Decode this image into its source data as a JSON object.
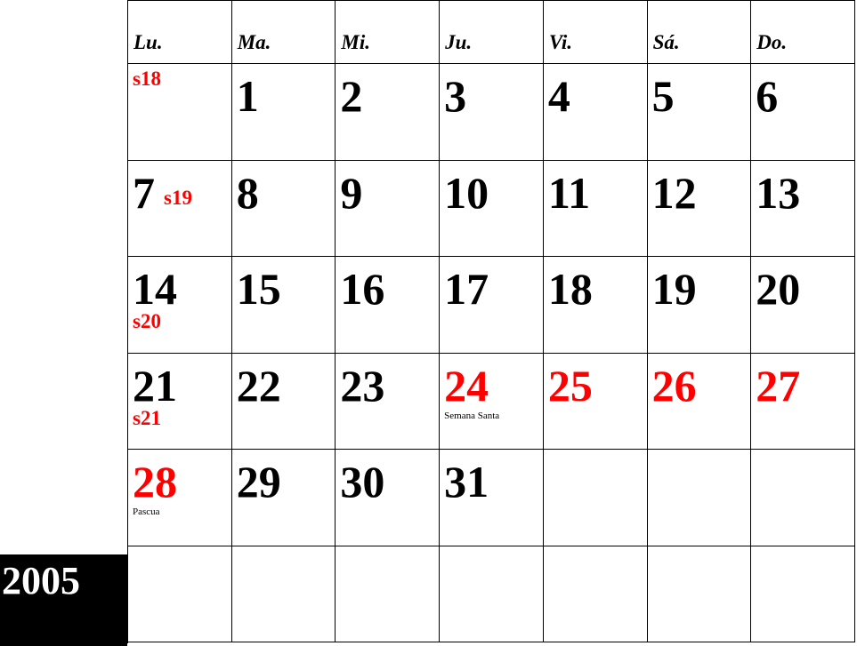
{
  "year": "2005",
  "headers": [
    "Lu.",
    "Ma.",
    "Mi.",
    "Ju.",
    "Vi.",
    "Sá.",
    "Do."
  ],
  "weeks": [
    [
      {
        "week": "s18",
        "week_position": "top"
      },
      {
        "day": "1"
      },
      {
        "day": "2"
      },
      {
        "day": "3"
      },
      {
        "day": "4"
      },
      {
        "day": "5"
      },
      {
        "day": "6"
      }
    ],
    [
      {
        "day": "7",
        "week": "s19",
        "week_position": "inline"
      },
      {
        "day": "8"
      },
      {
        "day": "9"
      },
      {
        "day": "10"
      },
      {
        "day": "11"
      },
      {
        "day": "12"
      },
      {
        "day": "13"
      }
    ],
    [
      {
        "day": "14",
        "week": "s20",
        "week_position": "below"
      },
      {
        "day": "15"
      },
      {
        "day": "16"
      },
      {
        "day": "17"
      },
      {
        "day": "18"
      },
      {
        "day": "19"
      },
      {
        "day": "20"
      }
    ],
    [
      {
        "day": "21",
        "week": "s21",
        "week_position": "below"
      },
      {
        "day": "22"
      },
      {
        "day": "23"
      },
      {
        "day": "24",
        "holiday": true,
        "note": "Semana Santa"
      },
      {
        "day": "25",
        "holiday": true
      },
      {
        "day": "26",
        "holiday": true
      },
      {
        "day": "27",
        "holiday": true
      }
    ],
    [
      {
        "day": "28",
        "holiday": true,
        "note": "Pascua"
      },
      {
        "day": "29"
      },
      {
        "day": "30"
      },
      {
        "day": "31"
      },
      null,
      null,
      null
    ],
    [
      null,
      null,
      null,
      null,
      null,
      null,
      null
    ]
  ]
}
